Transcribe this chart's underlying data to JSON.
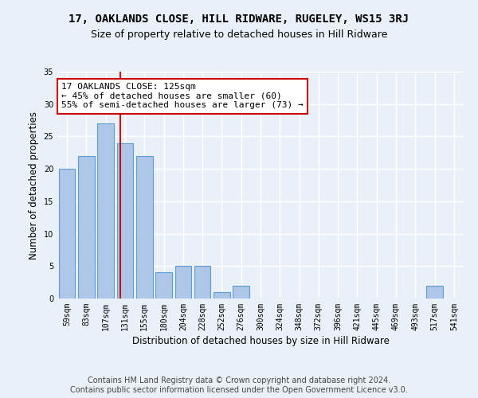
{
  "title": "17, OAKLANDS CLOSE, HILL RIDWARE, RUGELEY, WS15 3RJ",
  "subtitle": "Size of property relative to detached houses in Hill Ridware",
  "xlabel": "Distribution of detached houses by size in Hill Ridware",
  "ylabel": "Number of detached properties",
  "categories": [
    "59sqm",
    "83sqm",
    "107sqm",
    "131sqm",
    "155sqm",
    "180sqm",
    "204sqm",
    "228sqm",
    "252sqm",
    "276sqm",
    "300sqm",
    "324sqm",
    "348sqm",
    "372sqm",
    "396sqm",
    "421sqm",
    "445sqm",
    "469sqm",
    "493sqm",
    "517sqm",
    "541sqm"
  ],
  "values": [
    20,
    22,
    27,
    24,
    22,
    4,
    5,
    5,
    1,
    2,
    0,
    0,
    0,
    0,
    0,
    0,
    0,
    0,
    0,
    2,
    0
  ],
  "bar_color": "#aec6e8",
  "bar_edge_color": "#5a9fd4",
  "vline_color": "#cc0000",
  "annotation_text": "17 OAKLANDS CLOSE: 125sqm\n← 45% of detached houses are smaller (60)\n55% of semi-detached houses are larger (73) →",
  "annotation_box_color": "#ffffff",
  "annotation_box_edge_color": "#cc0000",
  "ylim": [
    0,
    35
  ],
  "yticks": [
    0,
    5,
    10,
    15,
    20,
    25,
    30,
    35
  ],
  "background_color": "#eaf0f8",
  "grid_color": "#ffffff",
  "footer_line1": "Contains HM Land Registry data © Crown copyright and database right 2024.",
  "footer_line2": "Contains public sector information licensed under the Open Government Licence v3.0.",
  "title_fontsize": 10,
  "subtitle_fontsize": 9,
  "annotation_fontsize": 8,
  "footer_fontsize": 7,
  "ylabel_fontsize": 8.5,
  "xlabel_fontsize": 8.5,
  "tick_fontsize": 7
}
